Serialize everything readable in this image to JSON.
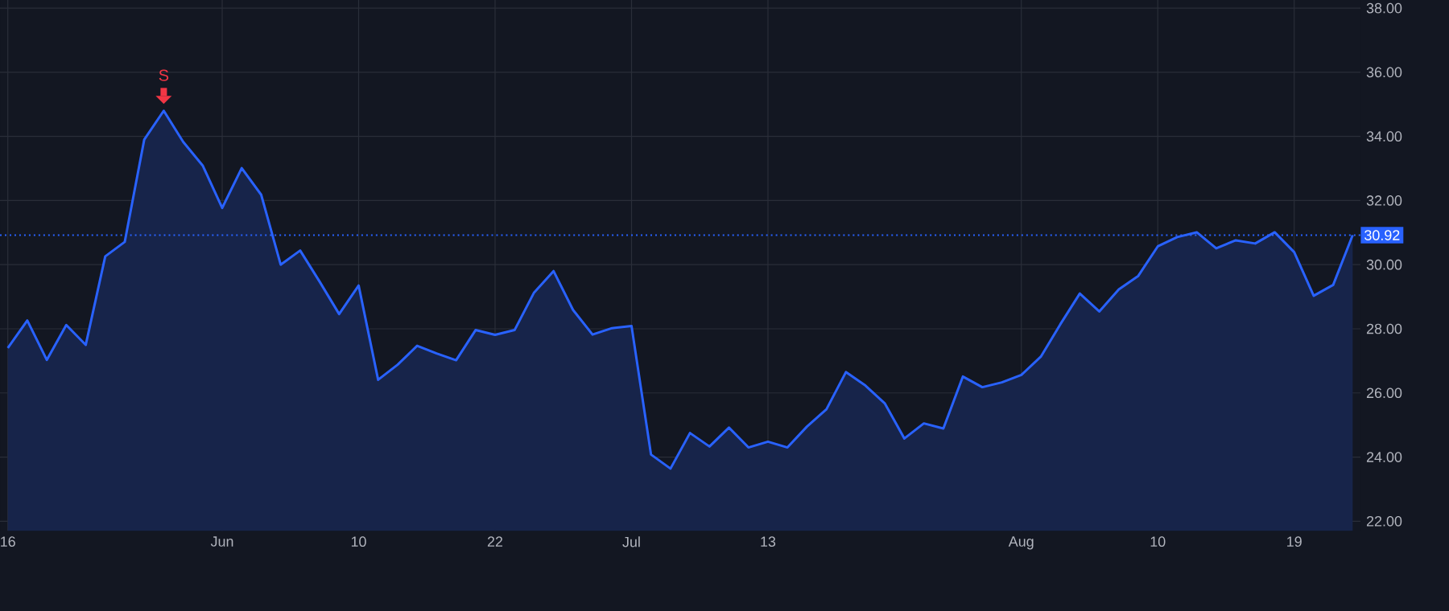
{
  "chart_data": {
    "type": "area",
    "categories": [
      "16",
      null,
      null,
      null,
      null,
      null,
      null,
      null,
      null,
      null,
      null,
      "Jun",
      null,
      null,
      null,
      null,
      null,
      null,
      "10",
      null,
      null,
      null,
      null,
      null,
      null,
      "22",
      null,
      null,
      null,
      null,
      null,
      null,
      "Jul",
      null,
      null,
      null,
      null,
      null,
      null,
      "13",
      null,
      null,
      null,
      null,
      null,
      null,
      null,
      null,
      null,
      null,
      null,
      null,
      "Aug",
      null,
      null,
      null,
      null,
      null,
      null,
      "10",
      null,
      null,
      null,
      null,
      null,
      null,
      "19",
      null,
      null,
      null
    ],
    "series": [
      {
        "color": "#2962ff",
        "values": [
          27.4,
          28.26,
          27.03,
          28.12,
          27.5,
          30.26,
          30.71,
          33.9,
          34.8,
          33.83,
          33.09,
          31.77,
          33.01,
          32.18,
          30.0,
          30.44,
          29.47,
          28.46,
          29.35,
          26.41,
          26.88,
          27.47,
          27.23,
          27.02,
          27.96,
          27.81,
          27.96,
          29.13,
          29.8,
          28.59,
          27.82,
          28.02,
          28.09,
          24.08,
          23.64,
          24.75,
          24.33,
          24.92,
          24.3,
          24.48,
          24.3,
          24.95,
          25.49,
          26.65,
          26.23,
          25.67,
          24.58,
          25.05,
          24.89,
          26.51,
          26.18,
          26.33,
          26.56,
          27.13,
          28.14,
          29.1,
          28.54,
          29.23,
          29.65,
          30.57,
          30.86,
          31.01,
          30.51,
          30.76,
          30.66,
          31.01,
          30.39,
          29.03,
          29.37,
          30.92
        ]
      }
    ],
    "ylim": [
      21.7,
      39.5
    ],
    "yticks": [
      {
        "value": 22,
        "label": "22.00"
      },
      {
        "value": 24,
        "label": "24.00"
      },
      {
        "value": 26,
        "label": "26.00"
      },
      {
        "value": 28,
        "label": "28.00"
      },
      {
        "value": 30,
        "label": "30.00"
      },
      {
        "value": 32,
        "label": "32.00"
      },
      {
        "value": 34,
        "label": "34.00"
      },
      {
        "value": 36,
        "label": "36.00"
      },
      {
        "value": 38,
        "label": "38.00"
      }
    ],
    "grid": true,
    "ref_lines": [
      {
        "axis": "y",
        "value": 30.92,
        "label": "30.92",
        "color": "#2962ff",
        "line_style": "dotted"
      }
    ],
    "annotations": [
      {
        "text": "S",
        "y": 34.8
      }
    ]
  }
}
